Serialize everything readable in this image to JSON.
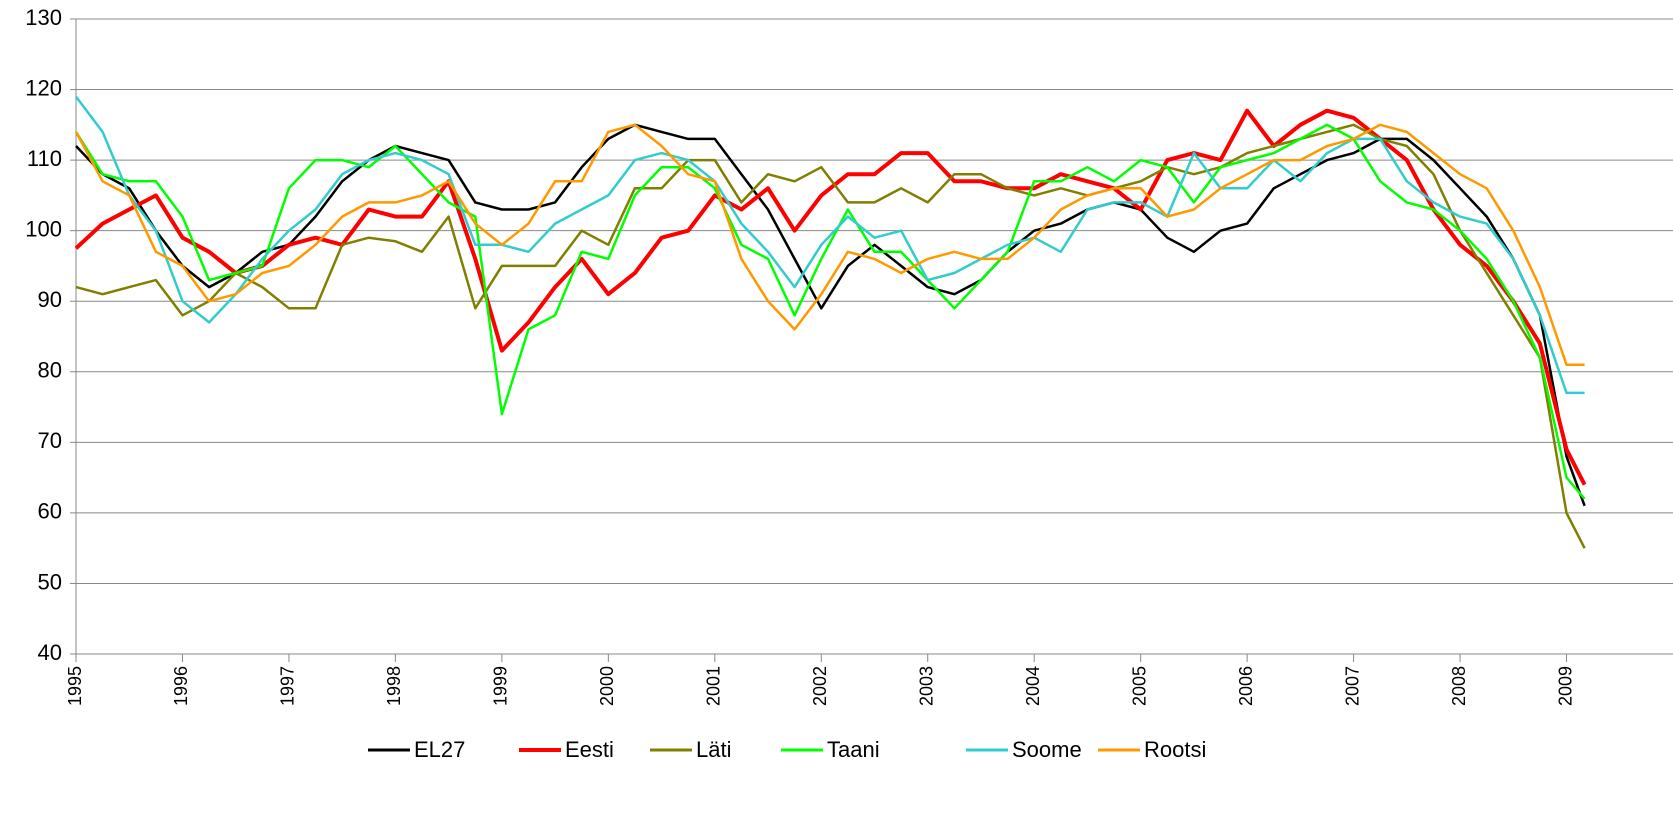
{
  "chart_data": {
    "type": "line",
    "x": [
      1995,
      1995.25,
      1995.5,
      1995.75,
      1996,
      1996.25,
      1996.5,
      1996.75,
      1997,
      1997.25,
      1997.5,
      1997.75,
      1998,
      1998.25,
      1998.5,
      1998.75,
      1999,
      1999.25,
      1999.5,
      1999.75,
      2000,
      2000.25,
      2000.5,
      2000.75,
      2001,
      2001.25,
      2001.5,
      2001.75,
      2002,
      2002.25,
      2002.5,
      2002.75,
      2003,
      2003.25,
      2003.5,
      2003.75,
      2004,
      2004.25,
      2004.5,
      2004.75,
      2005,
      2005.25,
      2005.5,
      2005.75,
      2006,
      2006.25,
      2006.5,
      2006.75,
      2007,
      2007.25,
      2007.5,
      2007.75,
      2008,
      2008.25,
      2008.5,
      2008.75,
      2009,
      2009.17
    ],
    "series": [
      {
        "name": "EL27",
        "color": "#000000",
        "values": [
          112,
          108,
          106,
          100,
          95,
          92,
          94,
          97,
          98,
          102,
          107,
          110,
          112,
          111,
          110,
          104,
          103,
          103,
          104,
          109,
          113,
          115,
          114,
          113,
          113,
          108,
          103,
          96,
          89,
          95,
          98,
          95,
          92,
          91,
          93,
          97,
          100,
          101,
          103,
          104,
          103,
          99,
          97,
          100,
          101,
          106,
          108,
          110,
          111,
          113,
          113,
          110,
          106,
          102,
          96,
          88,
          68,
          61
        ]
      },
      {
        "name": "Eesti",
        "color": "#ff0000",
        "values": [
          97.5,
          101,
          103,
          105,
          99,
          97,
          94,
          95,
          98,
          99,
          98,
          103,
          102,
          102,
          107,
          96,
          83,
          87,
          92,
          96,
          91,
          94,
          99,
          100,
          105,
          103,
          106,
          100,
          105,
          108,
          108,
          111,
          111,
          107,
          107,
          106,
          106,
          108,
          107,
          106,
          103,
          110,
          111,
          110,
          117,
          112,
          115,
          117,
          116,
          113,
          110,
          103,
          98,
          95,
          90,
          84,
          69,
          64
        ]
      },
      {
        "name": "Läti",
        "color": "#808000",
        "values": [
          92,
          91,
          92,
          93,
          88,
          90,
          94,
          92,
          89,
          89,
          98,
          99,
          98.5,
          97,
          102,
          89,
          95,
          95,
          95,
          100,
          98,
          106,
          106,
          110,
          110,
          104,
          108,
          107,
          109,
          104,
          104,
          106,
          104,
          108,
          108,
          106,
          105,
          106,
          105,
          106,
          107,
          109,
          108,
          109,
          111,
          112,
          113,
          114,
          115,
          113,
          112,
          108,
          100,
          94,
          88,
          82,
          60,
          55
        ]
      },
      {
        "name": "Taani",
        "color": "#00ff00",
        "values": [
          114,
          108,
          107,
          107,
          102,
          93,
          94,
          95,
          106,
          110,
          110,
          109,
          112,
          108,
          104,
          102,
          74,
          86,
          88,
          97,
          96,
          105,
          109,
          109,
          106,
          98,
          96,
          88,
          96,
          103,
          97,
          97,
          93,
          89,
          93,
          97,
          107,
          107,
          109,
          107,
          110,
          109,
          104,
          109,
          110,
          111,
          113,
          115,
          113,
          107,
          104,
          103,
          100,
          96,
          90,
          82,
          65,
          62
        ]
      },
      {
        "name": "Soome",
        "color": "#33cccc",
        "values": [
          119,
          114,
          105,
          100,
          90,
          87,
          91,
          96,
          100,
          103,
          108,
          110,
          111,
          110,
          108,
          98,
          98,
          97,
          101,
          103,
          105,
          110,
          111,
          110,
          107,
          101,
          97,
          92,
          98,
          102,
          99,
          100,
          93,
          94,
          96,
          98,
          99,
          97,
          103,
          104,
          104,
          102,
          111,
          106,
          106,
          110,
          107,
          111,
          113,
          113,
          107,
          104,
          102,
          101,
          96,
          88,
          77,
          77
        ]
      },
      {
        "name": "Rootsi",
        "color": "#ff9900",
        "values": [
          114,
          107,
          105,
          97,
          95,
          90,
          91,
          94,
          95,
          98,
          102,
          104,
          104,
          105,
          107,
          101,
          98,
          101,
          107,
          107,
          114,
          115,
          112,
          108,
          107,
          96,
          90,
          86,
          91,
          97,
          96,
          94,
          96,
          97,
          96,
          96,
          99,
          103,
          105,
          106,
          106,
          102,
          103,
          106,
          108,
          110,
          110,
          112,
          113,
          115,
          114,
          111,
          108,
          106,
          100,
          92,
          81,
          81
        ]
      }
    ],
    "xlim": [
      1995,
      2010
    ],
    "xticks": [
      1995,
      1996,
      1997,
      1998,
      1999,
      2000,
      2001,
      2002,
      2003,
      2004,
      2005,
      2006,
      2007,
      2008,
      2009
    ],
    "ylim": [
      40,
      130
    ],
    "yticks": [
      40,
      50,
      60,
      70,
      80,
      90,
      100,
      110,
      120,
      130
    ],
    "grid": true,
    "legend": "bottom"
  }
}
